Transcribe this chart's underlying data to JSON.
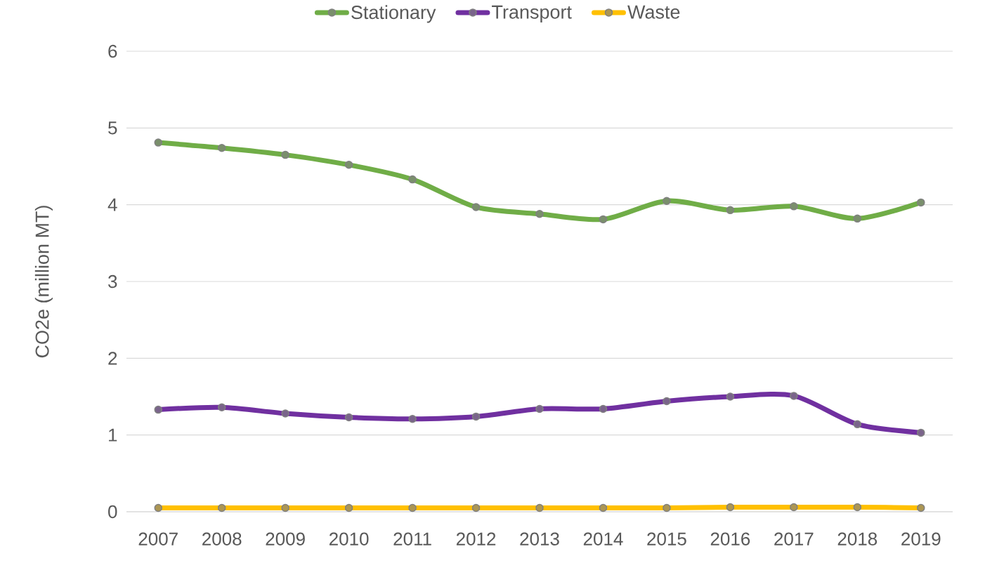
{
  "chart_data": {
    "type": "line",
    "ylabel": "CO2e (million MT)",
    "categories": [
      "2007",
      "2008",
      "2009",
      "2010",
      "2011",
      "2012",
      "2013",
      "2014",
      "2015",
      "2016",
      "2017",
      "2018",
      "2019"
    ],
    "series": [
      {
        "name": "Stationary",
        "color": "#70ad47",
        "values": [
          4.81,
          4.74,
          4.65,
          4.52,
          4.33,
          3.97,
          3.88,
          3.81,
          4.05,
          3.93,
          3.98,
          3.82,
          4.03
        ]
      },
      {
        "name": "Transport",
        "color": "#7030a0",
        "values": [
          1.33,
          1.36,
          1.28,
          1.23,
          1.21,
          1.24,
          1.34,
          1.34,
          1.44,
          1.5,
          1.51,
          1.14,
          1.03
        ]
      },
      {
        "name": "Waste",
        "color": "#ffc000",
        "values": [
          0.05,
          0.05,
          0.05,
          0.05,
          0.05,
          0.05,
          0.05,
          0.05,
          0.05,
          0.06,
          0.06,
          0.06,
          0.05
        ]
      }
    ],
    "ylim": [
      0,
      6
    ],
    "yticks": [
      0,
      1,
      2,
      3,
      4,
      5,
      6
    ],
    "grid": "y",
    "legend": "top",
    "marker": "circle",
    "line_style": "solid"
  }
}
